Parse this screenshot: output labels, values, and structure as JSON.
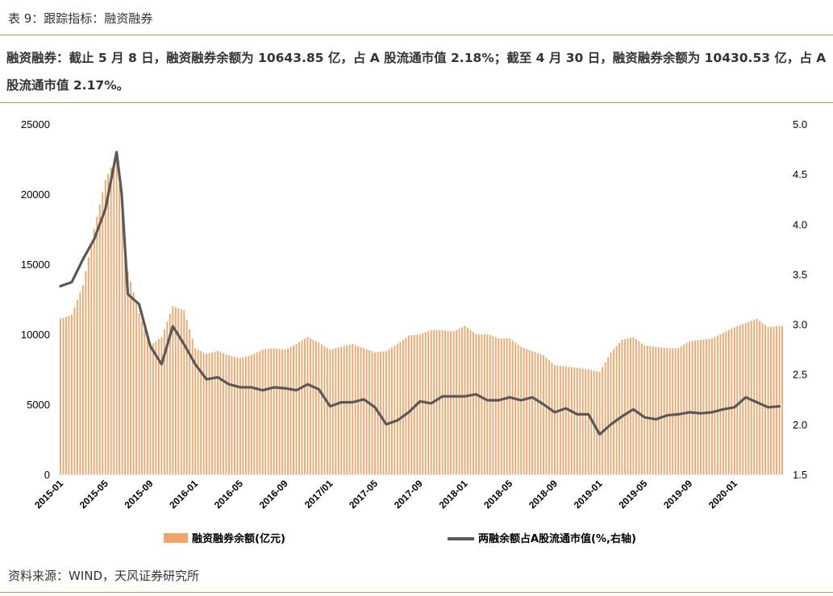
{
  "header": {
    "title": "表 9：跟踪指标：融资融券"
  },
  "summary": {
    "text": "融资融券：截止 5 月 8 日，融资融券余额为 10643.85 亿，占 A 股流通市值 2.18%；截至 4 月 30 日，融资融券余额为 10430.53 亿，占 A 股流通市值 2.17%。"
  },
  "footer": {
    "source": "资料来源：WIND，天风证券研究所"
  },
  "chart_data": {
    "type": "bar+line",
    "colors": {
      "bar": "#f0a46a",
      "line": "#595959"
    },
    "legend_position": "bottom",
    "grid": false,
    "left_axis": {
      "min": 0,
      "max": 25000,
      "ticks": [
        "0",
        "5000",
        "10000",
        "15000",
        "20000",
        "25000"
      ]
    },
    "right_axis": {
      "min": 1.5,
      "max": 5.0,
      "ticks": [
        "1.5",
        "2.0",
        "2.5",
        "3.0",
        "3.5",
        "4.0",
        "4.5",
        "5.0"
      ]
    },
    "x_ticks": [
      "2015-01",
      "2015-05",
      "2015-09",
      "2016-01",
      "2016-05",
      "2016-09",
      "2017/01",
      "2017-05",
      "2017-09",
      "2018-01",
      "2018-05",
      "2018-09",
      "2019-01",
      "2019-05",
      "2019-09",
      "2020-01"
    ],
    "series": [
      {
        "name": "融资融券余额(亿元)",
        "axis": "left",
        "kind": "bar",
        "points": [
          [
            "2015-01",
            11100
          ],
          [
            "2015-02",
            11400
          ],
          [
            "2015-03",
            13500
          ],
          [
            "2015-04",
            17500
          ],
          [
            "2015-05",
            21000
          ],
          [
            "2015-06",
            22800
          ],
          [
            "2015-07",
            14500
          ],
          [
            "2015-08",
            11500
          ],
          [
            "2015-09",
            9200
          ],
          [
            "2015-10",
            9800
          ],
          [
            "2015-11",
            12000
          ],
          [
            "2015-12",
            11700
          ],
          [
            "2016-01",
            9000
          ],
          [
            "2016-02",
            8600
          ],
          [
            "2016-03",
            8800
          ],
          [
            "2016-04",
            8500
          ],
          [
            "2016-05",
            8300
          ],
          [
            "2016-06",
            8500
          ],
          [
            "2016-07",
            8900
          ],
          [
            "2016-08",
            9000
          ],
          [
            "2016-09",
            8900
          ],
          [
            "2016-10",
            9300
          ],
          [
            "2016-11",
            9800
          ],
          [
            "2016-12",
            9400
          ],
          [
            "2017-01",
            8900
          ],
          [
            "2017-02",
            9100
          ],
          [
            "2017-03",
            9300
          ],
          [
            "2017-04",
            9000
          ],
          [
            "2017-05",
            8700
          ],
          [
            "2017-06",
            8800
          ],
          [
            "2017-07",
            9300
          ],
          [
            "2017-08",
            9900
          ],
          [
            "2017-09",
            10000
          ],
          [
            "2017-10",
            10300
          ],
          [
            "2017-11",
            10300
          ],
          [
            "2017-12",
            10200
          ],
          [
            "2018-01",
            10600
          ],
          [
            "2018-02",
            10000
          ],
          [
            "2018-03",
            10000
          ],
          [
            "2018-04",
            9700
          ],
          [
            "2018-05",
            9700
          ],
          [
            "2018-06",
            9100
          ],
          [
            "2018-07",
            8800
          ],
          [
            "2018-08",
            8500
          ],
          [
            "2018-09",
            7800
          ],
          [
            "2018-10",
            7700
          ],
          [
            "2018-11",
            7600
          ],
          [
            "2018-12",
            7500
          ],
          [
            "2019-01",
            7300
          ],
          [
            "2019-02",
            8700
          ],
          [
            "2019-03",
            9600
          ],
          [
            "2019-04",
            9800
          ],
          [
            "2019-05",
            9200
          ],
          [
            "2019-06",
            9100
          ],
          [
            "2019-07",
            9000
          ],
          [
            "2019-08",
            9000
          ],
          [
            "2019-09",
            9500
          ],
          [
            "2019-10",
            9600
          ],
          [
            "2019-11",
            9700
          ],
          [
            "2019-12",
            10100
          ],
          [
            "2020-01",
            10500
          ],
          [
            "2020-02",
            10800
          ],
          [
            "2020-03",
            11100
          ],
          [
            "2020-04",
            10500
          ],
          [
            "2020-05",
            10600
          ]
        ]
      },
      {
        "name": "两融余额占A股流通市值(%,右轴)",
        "axis": "right",
        "kind": "line",
        "points": [
          [
            "2015-01",
            3.38
          ],
          [
            "2015-02",
            3.42
          ],
          [
            "2015-03",
            3.65
          ],
          [
            "2015-04",
            3.85
          ],
          [
            "2015-05",
            4.15
          ],
          [
            "2015-06",
            4.72
          ],
          [
            "2015-06",
            4.3
          ],
          [
            "2015-07",
            3.3
          ],
          [
            "2015-08",
            3.2
          ],
          [
            "2015-09",
            2.78
          ],
          [
            "2015-10",
            2.6
          ],
          [
            "2015-11",
            2.98
          ],
          [
            "2015-12",
            2.8
          ],
          [
            "2016-01",
            2.6
          ],
          [
            "2016-02",
            2.45
          ],
          [
            "2016-03",
            2.47
          ],
          [
            "2016-04",
            2.4
          ],
          [
            "2016-05",
            2.37
          ],
          [
            "2016-06",
            2.37
          ],
          [
            "2016-07",
            2.34
          ],
          [
            "2016-08",
            2.37
          ],
          [
            "2016-09",
            2.36
          ],
          [
            "2016-10",
            2.34
          ],
          [
            "2016-11",
            2.4
          ],
          [
            "2016-12",
            2.35
          ],
          [
            "2017-01",
            2.18
          ],
          [
            "2017-02",
            2.22
          ],
          [
            "2017-03",
            2.22
          ],
          [
            "2017-04",
            2.25
          ],
          [
            "2017-05",
            2.17
          ],
          [
            "2017-06",
            2.0
          ],
          [
            "2017-07",
            2.04
          ],
          [
            "2017-08",
            2.12
          ],
          [
            "2017-09",
            2.23
          ],
          [
            "2017-10",
            2.21
          ],
          [
            "2017-11",
            2.28
          ],
          [
            "2017-12",
            2.28
          ],
          [
            "2018-01",
            2.28
          ],
          [
            "2018-02",
            2.3
          ],
          [
            "2018-03",
            2.24
          ],
          [
            "2018-04",
            2.24
          ],
          [
            "2018-05",
            2.27
          ],
          [
            "2018-06",
            2.24
          ],
          [
            "2018-07",
            2.27
          ],
          [
            "2018-08",
            2.2
          ],
          [
            "2018-09",
            2.12
          ],
          [
            "2018-10",
            2.16
          ],
          [
            "2018-11",
            2.1
          ],
          [
            "2018-12",
            2.1
          ],
          [
            "2019-01",
            1.9
          ],
          [
            "2019-02",
            2.0
          ],
          [
            "2019-03",
            2.08
          ],
          [
            "2019-04",
            2.15
          ],
          [
            "2019-05",
            2.07
          ],
          [
            "2019-06",
            2.05
          ],
          [
            "2019-07",
            2.09
          ],
          [
            "2019-08",
            2.1
          ],
          [
            "2019-09",
            2.12
          ],
          [
            "2019-10",
            2.11
          ],
          [
            "2019-11",
            2.12
          ],
          [
            "2019-12",
            2.15
          ],
          [
            "2020-01",
            2.17
          ],
          [
            "2020-02",
            2.27
          ],
          [
            "2020-03",
            2.22
          ],
          [
            "2020-04",
            2.17
          ],
          [
            "2020-05",
            2.18
          ]
        ]
      }
    ]
  }
}
